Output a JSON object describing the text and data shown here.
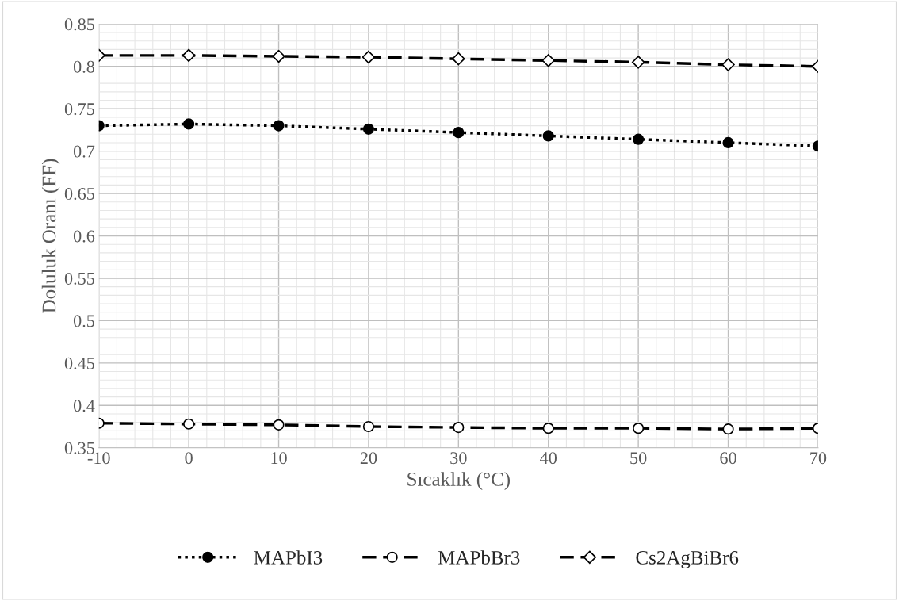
{
  "chart_data": {
    "type": "line",
    "xlabel": "Sıcaklık (°C)",
    "ylabel": "Doluluk Oranı (FF)",
    "x": [
      -10,
      0,
      10,
      20,
      30,
      40,
      50,
      60,
      70
    ],
    "xlim": [
      -10,
      70
    ],
    "xticks": [
      -10,
      0,
      10,
      20,
      30,
      40,
      50,
      60,
      70
    ],
    "ylim": [
      0.35,
      0.85
    ],
    "yticks": [
      0.35,
      0.4,
      0.45,
      0.5,
      0.55,
      0.6,
      0.65,
      0.7,
      0.75,
      0.8,
      0.85
    ],
    "grid": true,
    "legend": "bottom",
    "series": [
      {
        "name": "MAPbI3",
        "color": "#000000",
        "marker": "circle",
        "line_style": "dotted",
        "values": [
          0.73,
          0.732,
          0.73,
          0.726,
          0.722,
          0.718,
          0.714,
          0.71,
          0.706
        ]
      },
      {
        "name": "MAPbBr3",
        "color": "#000000",
        "marker": "circle",
        "line_style": "dashed",
        "values": [
          0.379,
          0.378,
          0.377,
          0.375,
          0.374,
          0.373,
          0.373,
          0.372,
          0.373
        ]
      },
      {
        "name": "Cs2AgBiBr6",
        "color": "#000000",
        "marker": "diamond",
        "line_style": "dashed",
        "values": [
          0.813,
          0.813,
          0.812,
          0.811,
          0.809,
          0.807,
          0.805,
          0.802,
          0.8
        ]
      }
    ]
  }
}
